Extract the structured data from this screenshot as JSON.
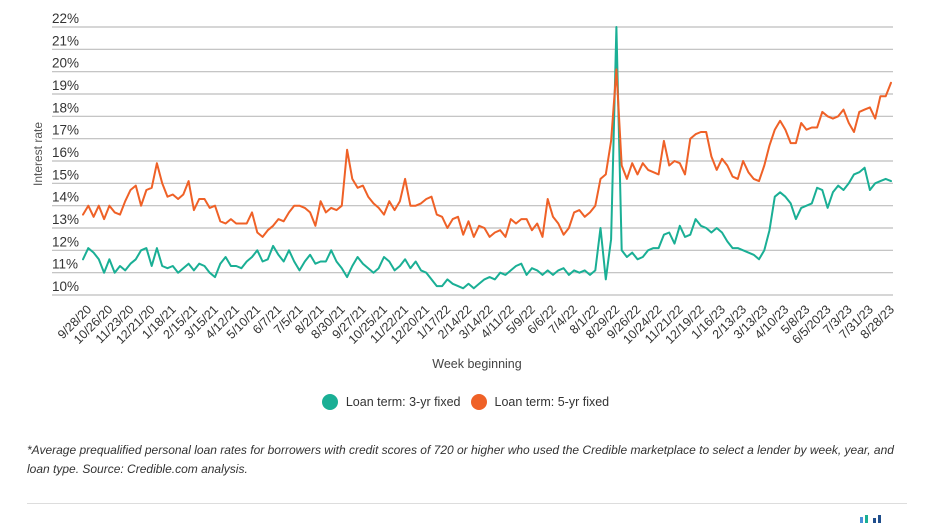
{
  "chart_data": {
    "type": "line",
    "title": "",
    "xlabel": "Week beginning",
    "ylabel": "Interest rate",
    "ylim": [
      10,
      22
    ],
    "y_ticks": [
      "10%",
      "11%",
      "12%",
      "13%",
      "14%",
      "15%",
      "16%",
      "17%",
      "18%",
      "19%",
      "20%",
      "21%",
      "22%"
    ],
    "y_tick_values": [
      10,
      11,
      12,
      13,
      14,
      15,
      16,
      17,
      18,
      19,
      20,
      21,
      22
    ],
    "grid": true,
    "x_tick_labels": [
      "9/28/20",
      "10/26/20",
      "11/23/20",
      "12/21/20",
      "1/18/21",
      "2/15/21",
      "3/15/21",
      "4/12/21",
      "5/10/21",
      "6/7/21",
      "7/5/21",
      "8/2/21",
      "8/30/21",
      "9/27/21",
      "10/25/21",
      "11/22/21",
      "12/20/21",
      "1/17/22",
      "2/14/22",
      "3/14/22",
      "4/11/22",
      "5/9/22",
      "6/6/22",
      "7/4/22",
      "8/1/22",
      "8/29/22",
      "9/26/22",
      "10/24/22",
      "11/21/22",
      "12/19/22",
      "1/16/23",
      "2/13/23",
      "3/13/23",
      "4/10/23",
      "5/8/23",
      "6/5/2023",
      "7/3/23",
      "7/31/23",
      "8/28/23"
    ],
    "x_tick_week_index": [
      0,
      4,
      8,
      12,
      16,
      20,
      24,
      28,
      32,
      36,
      40,
      44,
      48,
      52,
      56,
      60,
      64,
      68,
      72,
      76,
      80,
      84,
      88,
      92,
      96,
      100,
      104,
      108,
      112,
      116,
      120,
      124,
      128,
      132,
      136,
      140,
      144,
      148,
      152
    ],
    "legend_position": "bottom-center",
    "series": [
      {
        "name": "Loan term: 3-yr fixed",
        "color": "#1aaf95",
        "values": [
          11.6,
          12.1,
          11.9,
          11.6,
          11.0,
          11.6,
          11.0,
          11.3,
          11.1,
          11.4,
          11.6,
          12.0,
          12.1,
          11.3,
          12.1,
          11.3,
          11.2,
          11.3,
          11.0,
          11.2,
          11.4,
          11.1,
          11.4,
          11.3,
          11.0,
          10.8,
          11.4,
          11.7,
          11.3,
          11.3,
          11.2,
          11.5,
          11.7,
          12.0,
          11.5,
          11.6,
          12.2,
          11.8,
          11.5,
          12.0,
          11.5,
          11.1,
          11.5,
          11.8,
          11.4,
          11.5,
          11.5,
          12.0,
          11.5,
          11.2,
          10.8,
          11.3,
          11.7,
          11.4,
          11.2,
          11.0,
          11.2,
          11.7,
          11.5,
          11.1,
          11.3,
          11.6,
          11.2,
          11.5,
          11.1,
          11.0,
          10.7,
          10.4,
          10.4,
          10.7,
          10.5,
          10.4,
          10.3,
          10.5,
          10.3,
          10.5,
          10.7,
          10.8,
          10.7,
          11.0,
          10.9,
          11.1,
          11.3,
          11.4,
          10.9,
          11.2,
          11.1,
          10.9,
          11.1,
          10.9,
          11.1,
          11.2,
          10.9,
          11.1,
          11.0,
          11.1,
          10.9,
          11.1,
          13.0,
          10.7,
          12.5,
          22.0,
          12.0,
          11.7,
          11.9,
          11.6,
          11.7,
          12.0,
          12.1,
          12.1,
          12.7,
          12.8,
          12.3,
          13.1,
          12.6,
          12.7,
          13.4,
          13.1,
          13.0,
          12.8,
          13.0,
          12.8,
          12.4,
          12.1,
          12.1,
          12.0,
          11.9,
          11.8,
          11.6,
          12.0,
          12.9,
          14.4,
          14.6,
          14.4,
          14.1,
          13.4,
          13.9,
          14.0,
          14.1,
          14.8,
          14.7,
          13.9,
          14.6,
          14.9,
          14.7,
          15.0,
          15.4,
          15.5,
          15.7,
          14.7,
          15.0,
          15.1,
          15.2,
          15.1
        ]
      },
      {
        "name": "Loan term: 5-yr fixed",
        "color": "#ef6127",
        "values": [
          13.6,
          14.0,
          13.5,
          14.0,
          13.4,
          14.0,
          13.7,
          13.6,
          14.2,
          14.7,
          14.9,
          14.0,
          14.7,
          14.8,
          15.9,
          15.0,
          14.4,
          14.5,
          14.3,
          14.5,
          15.1,
          13.8,
          14.3,
          14.3,
          13.9,
          14.0,
          13.3,
          13.2,
          13.4,
          13.2,
          13.2,
          13.2,
          13.7,
          12.8,
          12.6,
          12.9,
          13.1,
          13.4,
          13.3,
          13.7,
          14.0,
          14.0,
          13.9,
          13.7,
          13.1,
          14.2,
          13.7,
          13.9,
          13.8,
          14.0,
          16.5,
          15.2,
          14.8,
          14.9,
          14.4,
          14.1,
          13.9,
          13.6,
          14.2,
          13.8,
          14.2,
          15.2,
          14.0,
          14.0,
          14.1,
          14.3,
          14.4,
          13.6,
          13.5,
          13.0,
          13.4,
          13.5,
          12.7,
          13.3,
          12.6,
          13.1,
          13.0,
          12.6,
          12.8,
          12.9,
          12.6,
          13.4,
          13.2,
          13.4,
          13.4,
          12.9,
          13.2,
          12.6,
          14.3,
          13.5,
          13.2,
          12.7,
          13.0,
          13.7,
          13.8,
          13.5,
          13.7,
          14.0,
          15.2,
          15.4,
          16.9,
          20.1,
          15.8,
          15.2,
          15.9,
          15.4,
          15.9,
          15.6,
          15.5,
          15.4,
          16.9,
          15.8,
          16.0,
          15.9,
          15.4,
          17.0,
          17.2,
          17.3,
          17.3,
          16.2,
          15.6,
          16.1,
          15.8,
          15.3,
          15.2,
          16.0,
          15.5,
          15.2,
          15.1,
          15.8,
          16.7,
          17.4,
          17.8,
          17.4,
          16.8,
          16.8,
          17.7,
          17.4,
          17.5,
          17.5,
          18.2,
          18.0,
          17.9,
          18.0,
          18.3,
          17.7,
          17.3,
          18.2,
          18.3,
          18.4,
          17.9,
          18.9,
          18.9,
          19.5
        ]
      }
    ]
  },
  "legend": {
    "items": [
      {
        "label": "Loan term: 3-yr fixed",
        "color": "#1aaf95"
      },
      {
        "label": "Loan term: 5-yr fixed",
        "color": "#ef6127"
      }
    ]
  },
  "footnote": "*Average prequalified personal loan rates for borrowers with credit scores of 720 or higher who used the Credible marketplace to select a lender by week, year, and loan type. Source: Credible.com analysis.",
  "logo_colors": [
    "#4a90d9",
    "#1aaf95",
    "#1f4e8c",
    "#1f4e8c"
  ]
}
